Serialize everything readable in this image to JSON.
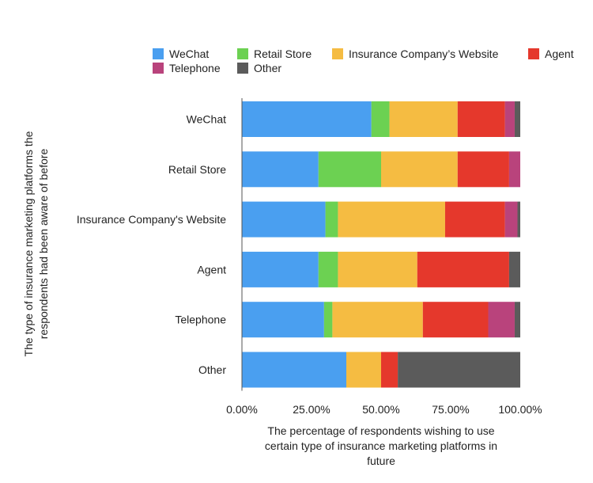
{
  "chart_data": {
    "type": "bar",
    "orientation": "horizontal",
    "stacked": true,
    "categories": [
      "WeChat",
      "Retail Store",
      "Insurance  Company's Website",
      "Agent",
      "Telephone",
      "Other"
    ],
    "series": [
      {
        "name": "WeChat",
        "color": "#4a9ff0",
        "values": [
          46.5,
          27.5,
          30.0,
          27.5,
          29.5,
          37.5
        ]
      },
      {
        "name": "Retail Store",
        "color": "#6cd152",
        "values": [
          6.5,
          22.5,
          4.5,
          7.0,
          3.0,
          0
        ]
      },
      {
        "name": "Insurance Company’s Website",
        "color": "#f5bc42",
        "values": [
          24.5,
          27.5,
          38.5,
          28.5,
          32.5,
          12.5
        ]
      },
      {
        "name": "Agent",
        "color": "#e5382c",
        "values": [
          17.0,
          18.5,
          21.5,
          33.0,
          23.5,
          6.0
        ]
      },
      {
        "name": "Telephone",
        "color": "#b9437c",
        "values": [
          3.5,
          4.0,
          4.5,
          0,
          9.5,
          0
        ]
      },
      {
        "name": "Other",
        "color": "#5b5b5b",
        "values": [
          2.0,
          0,
          1.0,
          4.0,
          2.0,
          44.0
        ]
      }
    ],
    "xlim": [
      0,
      100
    ],
    "xticks": [
      "0.00%",
      "25.00%",
      "50.00%",
      "75.00%",
      "100.00%"
    ],
    "xlabel": [
      "The percentage of respondents wishing to use",
      "certain type of insurance marketing platforms in",
      "future"
    ],
    "ylabel": [
      "The type of insurance marketing platforms the",
      "respondents had been aware of before"
    ],
    "legend": "top",
    "grid": false
  }
}
